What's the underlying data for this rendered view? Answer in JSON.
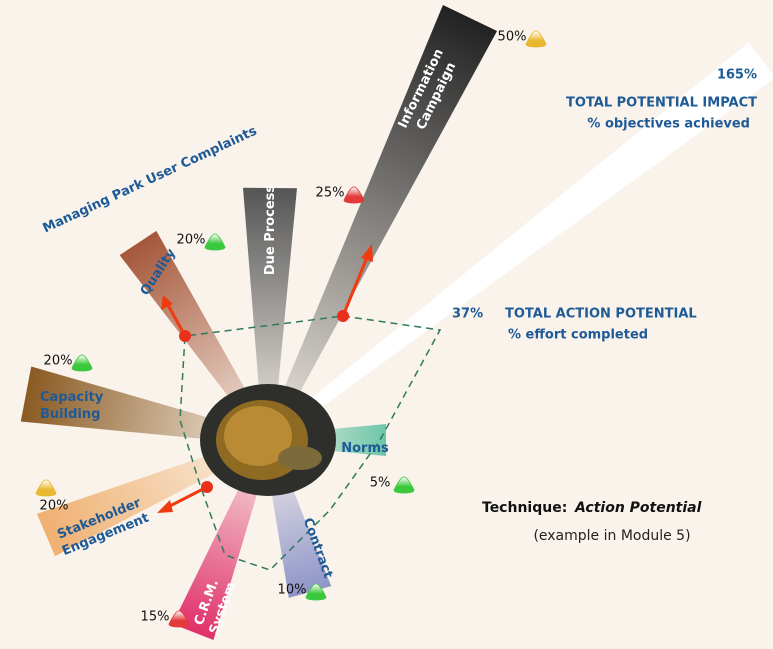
{
  "title": "Managing Park User Complaints",
  "impact": {
    "value": "165%",
    "label": "TOTAL POTENTIAL IMPACT",
    "sublabel": "% objectives achieved"
  },
  "action": {
    "value": "37%",
    "label": "TOTAL ACTION POTENTIAL",
    "sublabel": "% effort completed"
  },
  "technique": {
    "label": "Technique:",
    "name": "Action Potential",
    "note": "(example in Module 5)"
  },
  "spokes": [
    {
      "label": [
        "Information",
        "Campaign"
      ],
      "percent": "50%",
      "indicator": "#e8b830"
    },
    {
      "label": [
        "Due Process"
      ],
      "percent": "25%",
      "indicator": "#e23a3a"
    },
    {
      "label": [
        "Quality"
      ],
      "percent": "20%",
      "indicator": "#3cc83c"
    },
    {
      "label": [
        "Capacity",
        "Building"
      ],
      "percent": "20%",
      "indicator": "#3cc83c"
    },
    {
      "label": [
        "Stakeholder",
        "Engagement"
      ],
      "percent": "20%",
      "indicator": "#e8b830"
    },
    {
      "label": [
        "C.R.M.",
        "System"
      ],
      "percent": "15%",
      "indicator": "#e23a3a"
    },
    {
      "label": [
        "Contract"
      ],
      "percent": "10%",
      "indicator": "#3cc83c"
    },
    {
      "label": [
        "Norms"
      ],
      "percent": "5%",
      "indicator": "#3cc83c"
    }
  ]
}
